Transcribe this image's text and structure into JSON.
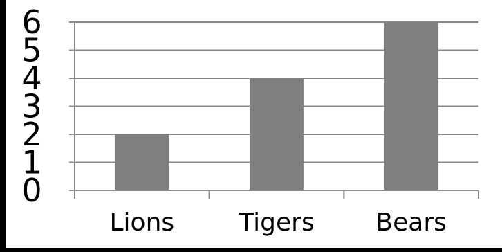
{
  "chart_data": {
    "type": "bar",
    "categories": [
      "Lions",
      "Tigers",
      "Bears"
    ],
    "values": [
      2,
      4,
      6
    ],
    "ylim": [
      0,
      6
    ],
    "yticks": [
      0,
      1,
      2,
      3,
      4,
      5,
      6
    ],
    "title": "",
    "xlabel": "",
    "ylabel": "",
    "grid": true,
    "legend": "none",
    "colors": {
      "bar": "#7f7f7f",
      "grid": "#898989",
      "axis": "#898989",
      "text": "#000000",
      "frame": "#000000"
    }
  }
}
